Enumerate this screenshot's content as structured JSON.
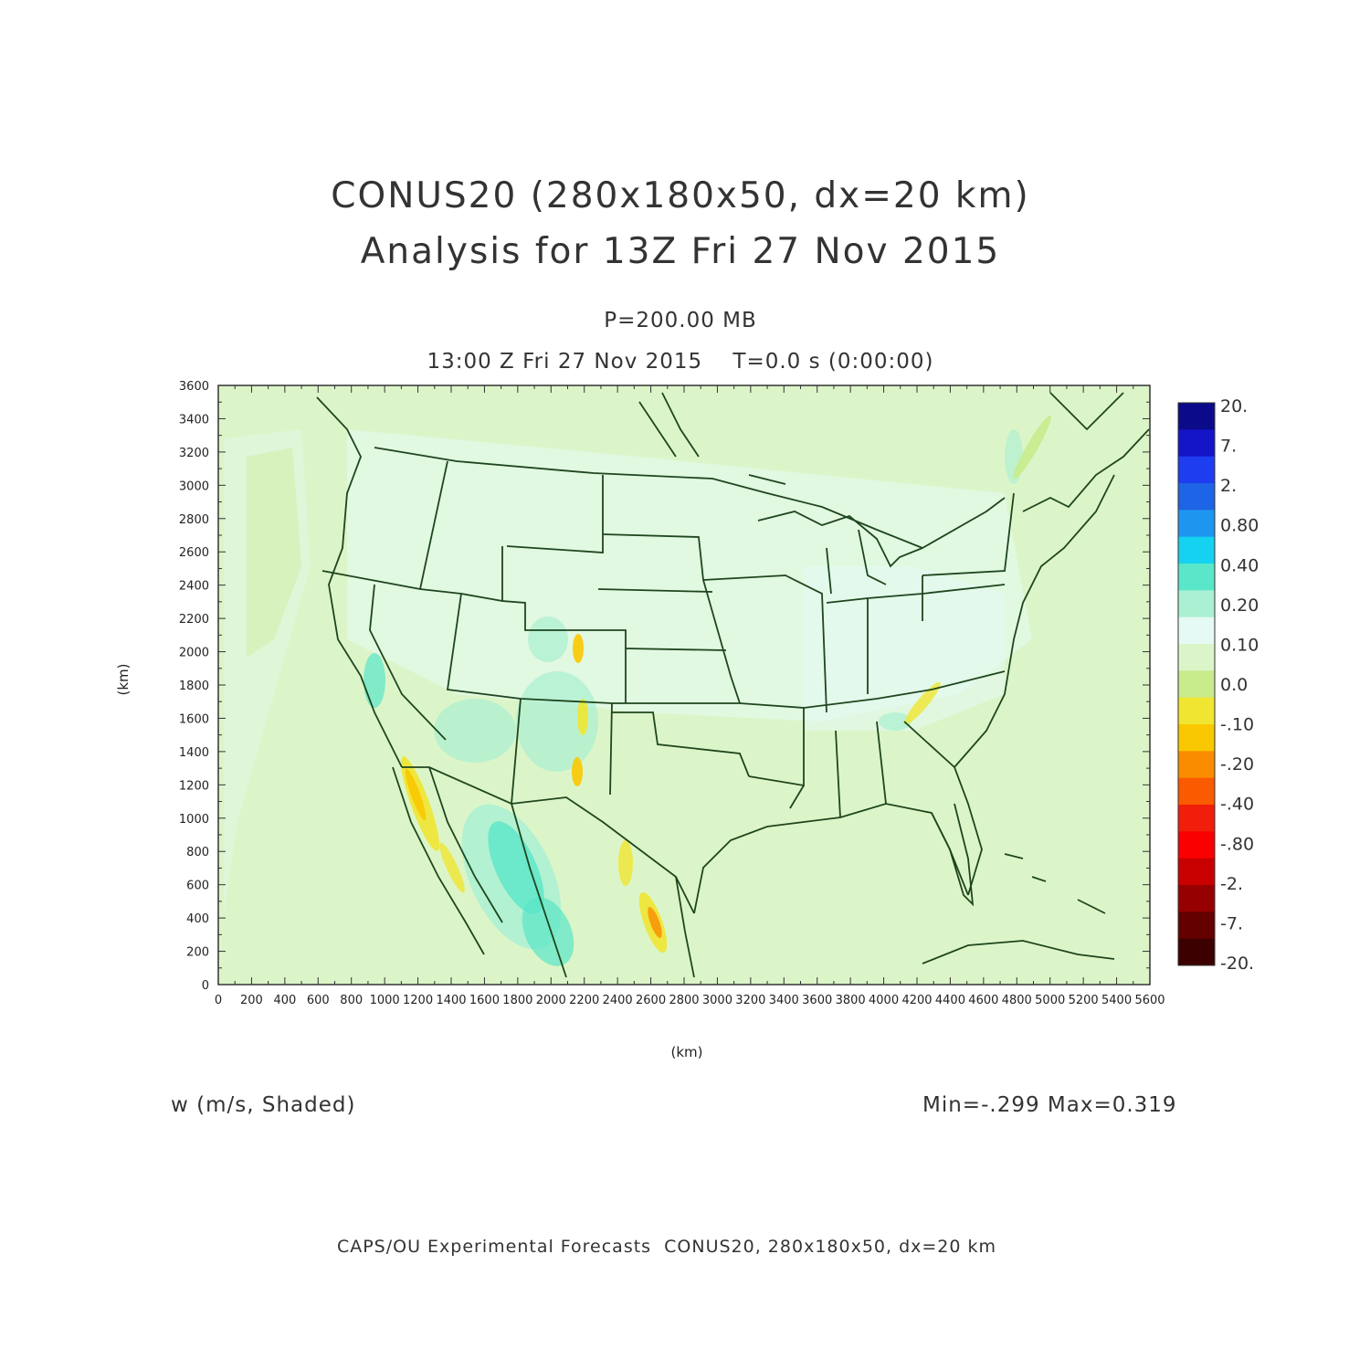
{
  "header": {
    "title_line1": "CONUS20 (280x180x50, dx=20 km)",
    "title_line2": "Analysis for 13Z Fri 27 Nov 2015",
    "level": "P=200.00 MB",
    "time": "13:00 Z Fri 27 Nov 2015    T=0.0 s (0:00:00)"
  },
  "axes": {
    "xlabel": "(km)",
    "ylabel": "(km)",
    "x_ticks": [
      "0",
      "200",
      "400",
      "600",
      "800",
      "1000",
      "1200",
      "1400",
      "1600",
      "1800",
      "2000",
      "2200",
      "2400",
      "2600",
      "2800",
      "3000",
      "3200",
      "3400",
      "3600",
      "3800",
      "4000",
      "4200",
      "4400",
      "4600",
      "4800",
      "5000",
      "5200",
      "5400",
      "5600"
    ],
    "y_ticks": [
      "0",
      "200",
      "400",
      "600",
      "800",
      "1000",
      "1200",
      "1400",
      "1600",
      "1800",
      "2000",
      "2200",
      "2400",
      "2600",
      "2800",
      "3000",
      "3200",
      "3400",
      "3600"
    ],
    "xlim": [
      0,
      5600
    ],
    "ylim": [
      0,
      3600
    ]
  },
  "colorbar": {
    "labels": [
      "20.",
      "7.",
      "2.",
      "0.80",
      "0.40",
      "0.20",
      "0.10",
      "0.0",
      "-.10",
      "-.20",
      "-.40",
      "-.80",
      "-2.",
      "-7.",
      "-20."
    ],
    "colors": [
      "#0a0a8a",
      "#1414c8",
      "#1e3cf0",
      "#1e64e6",
      "#1e96f0",
      "#14d2f0",
      "#5ae6c8",
      "#aaf0d2",
      "#e6faf5",
      "#dcf5c8",
      "#c8eb8c",
      "#f0e632",
      "#fac800",
      "#fa8c00",
      "#fa5a00",
      "#f01e0a",
      "#fa0000",
      "#c80000",
      "#960000",
      "#640000",
      "#3c0000"
    ]
  },
  "stats": {
    "variable": "w (m/s, Shaded)",
    "minmax": "Min=-.299 Max=0.319"
  },
  "footer": "CAPS/OU Experimental Forecasts  CONUS20, 280x180x50, dx=20 km",
  "map_colors": {
    "background": "#dcf5c8",
    "boundaries": "#1e461e"
  }
}
